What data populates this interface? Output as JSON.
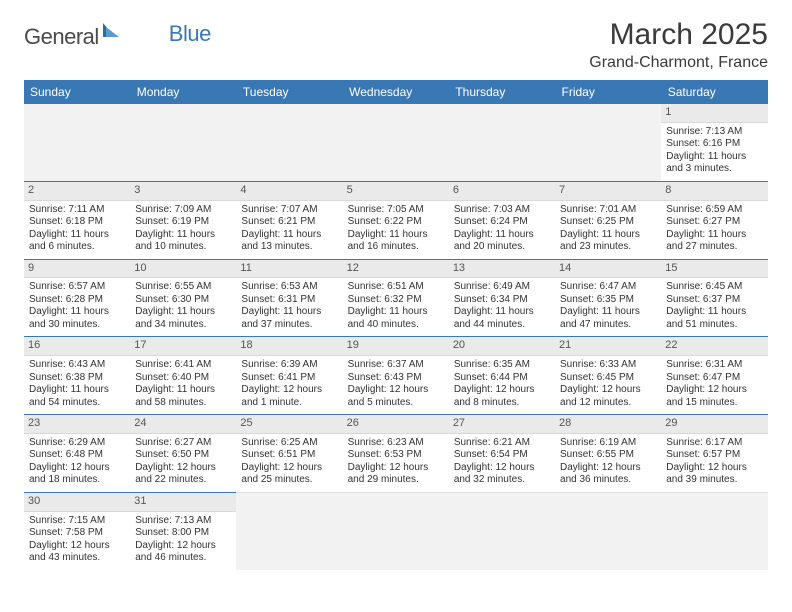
{
  "logo": {
    "text1": "General",
    "text2": "Blue"
  },
  "title": "March 2025",
  "location": "Grand-Charmont, France",
  "colors": {
    "header_bg": "#3a78b5",
    "header_text": "#ffffff",
    "daynum_bg": "#eaeaea",
    "cell_text": "#333333",
    "divider": "#3a78b5",
    "blank_bg": "#f2f2f2",
    "page_bg": "#ffffff"
  },
  "day_headers": [
    "Sunday",
    "Monday",
    "Tuesday",
    "Wednesday",
    "Thursday",
    "Friday",
    "Saturday"
  ],
  "weeks": [
    [
      null,
      null,
      null,
      null,
      null,
      null,
      {
        "n": "1",
        "sunrise": "7:13 AM",
        "sunset": "6:16 PM",
        "daylight": "11 hours and 3 minutes."
      }
    ],
    [
      {
        "n": "2",
        "sunrise": "7:11 AM",
        "sunset": "6:18 PM",
        "daylight": "11 hours and 6 minutes."
      },
      {
        "n": "3",
        "sunrise": "7:09 AM",
        "sunset": "6:19 PM",
        "daylight": "11 hours and 10 minutes."
      },
      {
        "n": "4",
        "sunrise": "7:07 AM",
        "sunset": "6:21 PM",
        "daylight": "11 hours and 13 minutes."
      },
      {
        "n": "5",
        "sunrise": "7:05 AM",
        "sunset": "6:22 PM",
        "daylight": "11 hours and 16 minutes."
      },
      {
        "n": "6",
        "sunrise": "7:03 AM",
        "sunset": "6:24 PM",
        "daylight": "11 hours and 20 minutes."
      },
      {
        "n": "7",
        "sunrise": "7:01 AM",
        "sunset": "6:25 PM",
        "daylight": "11 hours and 23 minutes."
      },
      {
        "n": "8",
        "sunrise": "6:59 AM",
        "sunset": "6:27 PM",
        "daylight": "11 hours and 27 minutes."
      }
    ],
    [
      {
        "n": "9",
        "sunrise": "6:57 AM",
        "sunset": "6:28 PM",
        "daylight": "11 hours and 30 minutes."
      },
      {
        "n": "10",
        "sunrise": "6:55 AM",
        "sunset": "6:30 PM",
        "daylight": "11 hours and 34 minutes."
      },
      {
        "n": "11",
        "sunrise": "6:53 AM",
        "sunset": "6:31 PM",
        "daylight": "11 hours and 37 minutes."
      },
      {
        "n": "12",
        "sunrise": "6:51 AM",
        "sunset": "6:32 PM",
        "daylight": "11 hours and 40 minutes."
      },
      {
        "n": "13",
        "sunrise": "6:49 AM",
        "sunset": "6:34 PM",
        "daylight": "11 hours and 44 minutes."
      },
      {
        "n": "14",
        "sunrise": "6:47 AM",
        "sunset": "6:35 PM",
        "daylight": "11 hours and 47 minutes."
      },
      {
        "n": "15",
        "sunrise": "6:45 AM",
        "sunset": "6:37 PM",
        "daylight": "11 hours and 51 minutes."
      }
    ],
    [
      {
        "n": "16",
        "sunrise": "6:43 AM",
        "sunset": "6:38 PM",
        "daylight": "11 hours and 54 minutes."
      },
      {
        "n": "17",
        "sunrise": "6:41 AM",
        "sunset": "6:40 PM",
        "daylight": "11 hours and 58 minutes."
      },
      {
        "n": "18",
        "sunrise": "6:39 AM",
        "sunset": "6:41 PM",
        "daylight": "12 hours and 1 minute."
      },
      {
        "n": "19",
        "sunrise": "6:37 AM",
        "sunset": "6:43 PM",
        "daylight": "12 hours and 5 minutes."
      },
      {
        "n": "20",
        "sunrise": "6:35 AM",
        "sunset": "6:44 PM",
        "daylight": "12 hours and 8 minutes."
      },
      {
        "n": "21",
        "sunrise": "6:33 AM",
        "sunset": "6:45 PM",
        "daylight": "12 hours and 12 minutes."
      },
      {
        "n": "22",
        "sunrise": "6:31 AM",
        "sunset": "6:47 PM",
        "daylight": "12 hours and 15 minutes."
      }
    ],
    [
      {
        "n": "23",
        "sunrise": "6:29 AM",
        "sunset": "6:48 PM",
        "daylight": "12 hours and 18 minutes."
      },
      {
        "n": "24",
        "sunrise": "6:27 AM",
        "sunset": "6:50 PM",
        "daylight": "12 hours and 22 minutes."
      },
      {
        "n": "25",
        "sunrise": "6:25 AM",
        "sunset": "6:51 PM",
        "daylight": "12 hours and 25 minutes."
      },
      {
        "n": "26",
        "sunrise": "6:23 AM",
        "sunset": "6:53 PM",
        "daylight": "12 hours and 29 minutes."
      },
      {
        "n": "27",
        "sunrise": "6:21 AM",
        "sunset": "6:54 PM",
        "daylight": "12 hours and 32 minutes."
      },
      {
        "n": "28",
        "sunrise": "6:19 AM",
        "sunset": "6:55 PM",
        "daylight": "12 hours and 36 minutes."
      },
      {
        "n": "29",
        "sunrise": "6:17 AM",
        "sunset": "6:57 PM",
        "daylight": "12 hours and 39 minutes."
      }
    ],
    [
      {
        "n": "30",
        "sunrise": "7:15 AM",
        "sunset": "7:58 PM",
        "daylight": "12 hours and 43 minutes."
      },
      {
        "n": "31",
        "sunrise": "7:13 AM",
        "sunset": "8:00 PM",
        "daylight": "12 hours and 46 minutes."
      },
      null,
      null,
      null,
      null,
      null
    ]
  ],
  "labels": {
    "sunrise_prefix": "Sunrise: ",
    "sunset_prefix": "Sunset: ",
    "daylight_prefix": "Daylight: "
  }
}
